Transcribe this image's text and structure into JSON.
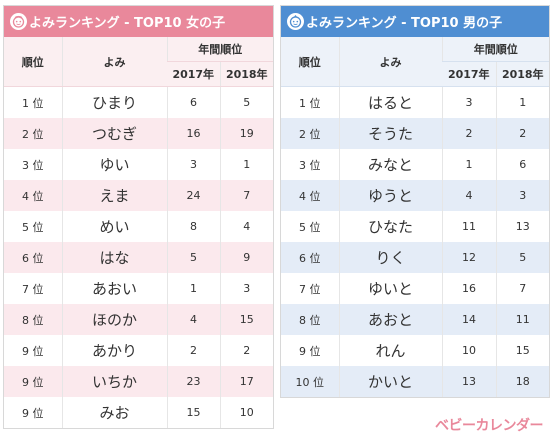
{
  "colors": {
    "girls_accent": "#e9889b",
    "boys_accent": "#4f8ed2",
    "logo": "#e9889b"
  },
  "girls": {
    "title": "よみランキング - TOP10 女の子",
    "icon": "girl-face-icon",
    "headers": {
      "rank": "順位",
      "yomi": "よみ",
      "group": "年間順位",
      "y2017": "2017年",
      "y2018": "2018年"
    },
    "rows": [
      {
        "rank": "1 位",
        "yomi": "ひまり",
        "y2017": "6",
        "y2018": "5"
      },
      {
        "rank": "2 位",
        "yomi": "つむぎ",
        "y2017": "16",
        "y2018": "19"
      },
      {
        "rank": "3 位",
        "yomi": "ゆい",
        "y2017": "3",
        "y2018": "1"
      },
      {
        "rank": "4 位",
        "yomi": "えま",
        "y2017": "24",
        "y2018": "7"
      },
      {
        "rank": "5 位",
        "yomi": "めい",
        "y2017": "8",
        "y2018": "4"
      },
      {
        "rank": "6 位",
        "yomi": "はな",
        "y2017": "5",
        "y2018": "9"
      },
      {
        "rank": "7 位",
        "yomi": "あおい",
        "y2017": "1",
        "y2018": "3"
      },
      {
        "rank": "8 位",
        "yomi": "ほのか",
        "y2017": "4",
        "y2018": "15"
      },
      {
        "rank": "9 位",
        "yomi": "あかり",
        "y2017": "2",
        "y2018": "2"
      },
      {
        "rank": "9 位",
        "yomi": "いちか",
        "y2017": "23",
        "y2018": "17"
      },
      {
        "rank": "9 位",
        "yomi": "みお",
        "y2017": "15",
        "y2018": "10"
      }
    ]
  },
  "boys": {
    "title": "よみランキング - TOP10 男の子",
    "icon": "boy-face-icon",
    "headers": {
      "rank": "順位",
      "yomi": "よみ",
      "group": "年間順位",
      "y2017": "2017年",
      "y2018": "2018年"
    },
    "rows": [
      {
        "rank": "1 位",
        "yomi": "はると",
        "y2017": "3",
        "y2018": "1"
      },
      {
        "rank": "2 位",
        "yomi": "そうた",
        "y2017": "2",
        "y2018": "2"
      },
      {
        "rank": "3 位",
        "yomi": "みなと",
        "y2017": "1",
        "y2018": "6"
      },
      {
        "rank": "4 位",
        "yomi": "ゆうと",
        "y2017": "4",
        "y2018": "3"
      },
      {
        "rank": "5 位",
        "yomi": "ひなた",
        "y2017": "11",
        "y2018": "13"
      },
      {
        "rank": "6 位",
        "yomi": "りく",
        "y2017": "12",
        "y2018": "5"
      },
      {
        "rank": "7 位",
        "yomi": "ゆいと",
        "y2017": "16",
        "y2018": "7"
      },
      {
        "rank": "8 位",
        "yomi": "あおと",
        "y2017": "14",
        "y2018": "11"
      },
      {
        "rank": "9 位",
        "yomi": "れん",
        "y2017": "10",
        "y2018": "15"
      },
      {
        "rank": "10 位",
        "yomi": "かいと",
        "y2017": "13",
        "y2018": "18"
      }
    ]
  },
  "logo_text": "ベビーカレンダー"
}
